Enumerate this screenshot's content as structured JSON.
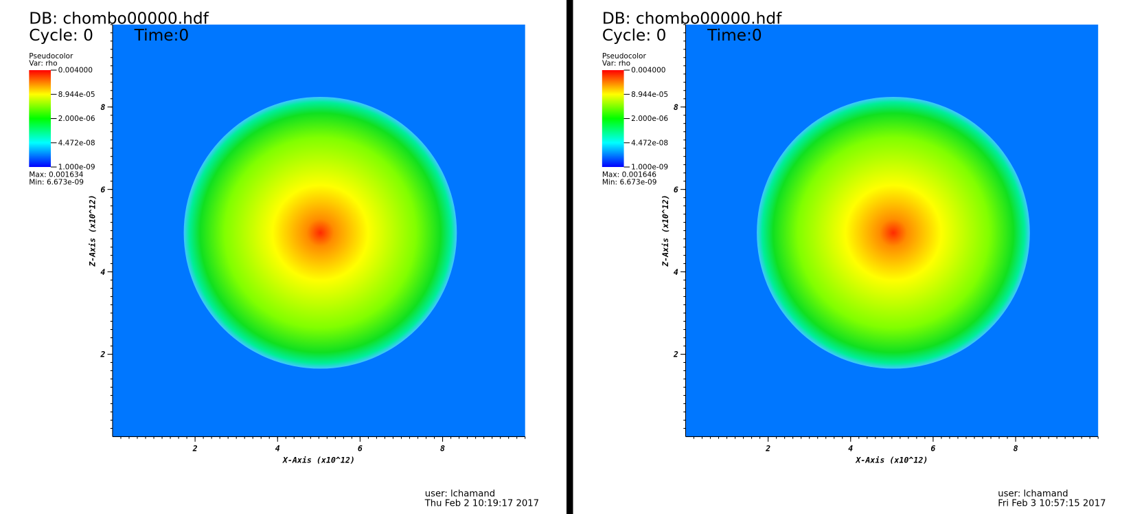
{
  "chart_data": [
    {
      "type": "pseudocolor",
      "db": "DB: chombo00000.hdf",
      "cycle": "Cycle: 0",
      "time": "Time:0",
      "legend_title": "Pseudocolor",
      "legend_var": "Var: rho",
      "clim": [
        1e-09,
        0.004
      ],
      "clog": true,
      "cticks": [
        {
          "value": 0.004,
          "label": "0.004000"
        },
        {
          "value": 8.944e-05,
          "label": "8.944e-05"
        },
        {
          "value": 2e-06,
          "label": "2.000e-06"
        },
        {
          "value": 4.472e-08,
          "label": "4.472e-08"
        },
        {
          "value": 1e-09,
          "label": "1.000e-09"
        }
      ],
      "max": "Max: 0.001634",
      "min": "Min: 6.673e-09",
      "xlabel": "X-Axis (x10^12)",
      "ylabel": "Z-Axis (x10^12)",
      "xlim": [
        0,
        10
      ],
      "ylim": [
        0,
        10
      ],
      "xticks": [
        2,
        4,
        6,
        8
      ],
      "yticks": [
        2,
        4,
        6,
        8
      ],
      "user": "user: lchamand",
      "date": "Thu Feb  2 10:19:17 2017"
    },
    {
      "type": "pseudocolor",
      "db": "DB: chombo00000.hdf",
      "cycle": "Cycle: 0",
      "time": "Time:0",
      "legend_title": "Pseudocolor",
      "legend_var": "Var: rho",
      "clim": [
        1e-09,
        0.004
      ],
      "clog": true,
      "cticks": [
        {
          "value": 0.004,
          "label": "0.004000"
        },
        {
          "value": 8.944e-05,
          "label": "8.944e-05"
        },
        {
          "value": 2e-06,
          "label": "2.000e-06"
        },
        {
          "value": 4.472e-08,
          "label": "4.472e-08"
        },
        {
          "value": 1e-09,
          "label": "1.000e-09"
        }
      ],
      "max": "Max: 0.001646",
      "min": "Min: 6.673e-09",
      "xlabel": "X-Axis (x10^12)",
      "ylabel": "Z-Axis (x10^12)",
      "xlim": [
        0,
        10
      ],
      "ylim": [
        0,
        10
      ],
      "xticks": [
        2,
        4,
        6,
        8
      ],
      "yticks": [
        2,
        4,
        6,
        8
      ],
      "user": "user: lchamand",
      "date": "Fri Feb  3 10:57:15 2017"
    }
  ]
}
